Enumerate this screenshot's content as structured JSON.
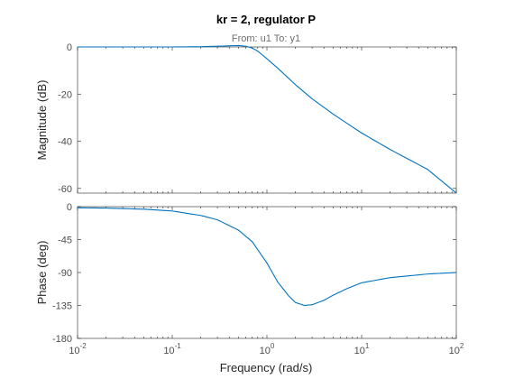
{
  "chart_data": {
    "type": "line",
    "title": "kr = 2, regulator P",
    "subtitle": "From: u1  To: y1",
    "xlabel": "Frequency  (rad/s)",
    "x_scale": "log",
    "xlim": [
      0.01,
      100
    ],
    "x_ticks": [
      {
        "base": "10",
        "exp": "-2"
      },
      {
        "base": "10",
        "exp": "-1"
      },
      {
        "base": "10",
        "exp": "0"
      },
      {
        "base": "10",
        "exp": "1"
      },
      {
        "base": "10",
        "exp": "2"
      }
    ],
    "line_color": "#0072bd",
    "panels": [
      {
        "ylabel": "Magnitude (dB)",
        "ylim": [
          -62,
          0
        ],
        "y_ticks": [
          "0",
          "-20",
          "-40",
          "-60"
        ],
        "y_tick_values": [
          0,
          -20,
          -40,
          -60
        ],
        "x": [
          0.01,
          0.02,
          0.05,
          0.1,
          0.2,
          0.3,
          0.5,
          0.6,
          0.7,
          0.8,
          1,
          1.3,
          2,
          3,
          5,
          10,
          20,
          50,
          100
        ],
        "y": [
          0,
          0,
          0,
          0,
          0.1,
          0.3,
          0.6,
          0.3,
          -0.5,
          -1.8,
          -5,
          -9,
          -16,
          -22,
          -28.5,
          -36.5,
          -43.5,
          -52,
          -62
        ]
      },
      {
        "ylabel": "Phase (deg)",
        "ylim": [
          -180,
          0
        ],
        "y_ticks": [
          "0",
          "-45",
          "-90",
          "-135",
          "-180"
        ],
        "y_tick_values": [
          0,
          -45,
          -90,
          -135,
          -180
        ],
        "x": [
          0.01,
          0.02,
          0.05,
          0.1,
          0.2,
          0.3,
          0.5,
          0.7,
          1,
          1.3,
          1.7,
          2,
          2.5,
          3,
          4,
          5,
          7,
          10,
          20,
          50,
          100
        ],
        "y": [
          -1.5,
          -2,
          -3.5,
          -6,
          -12,
          -18,
          -32,
          -48,
          -77,
          -103,
          -122,
          -131,
          -135,
          -134,
          -128,
          -121,
          -112,
          -104,
          -97,
          -92,
          -90
        ]
      }
    ]
  }
}
